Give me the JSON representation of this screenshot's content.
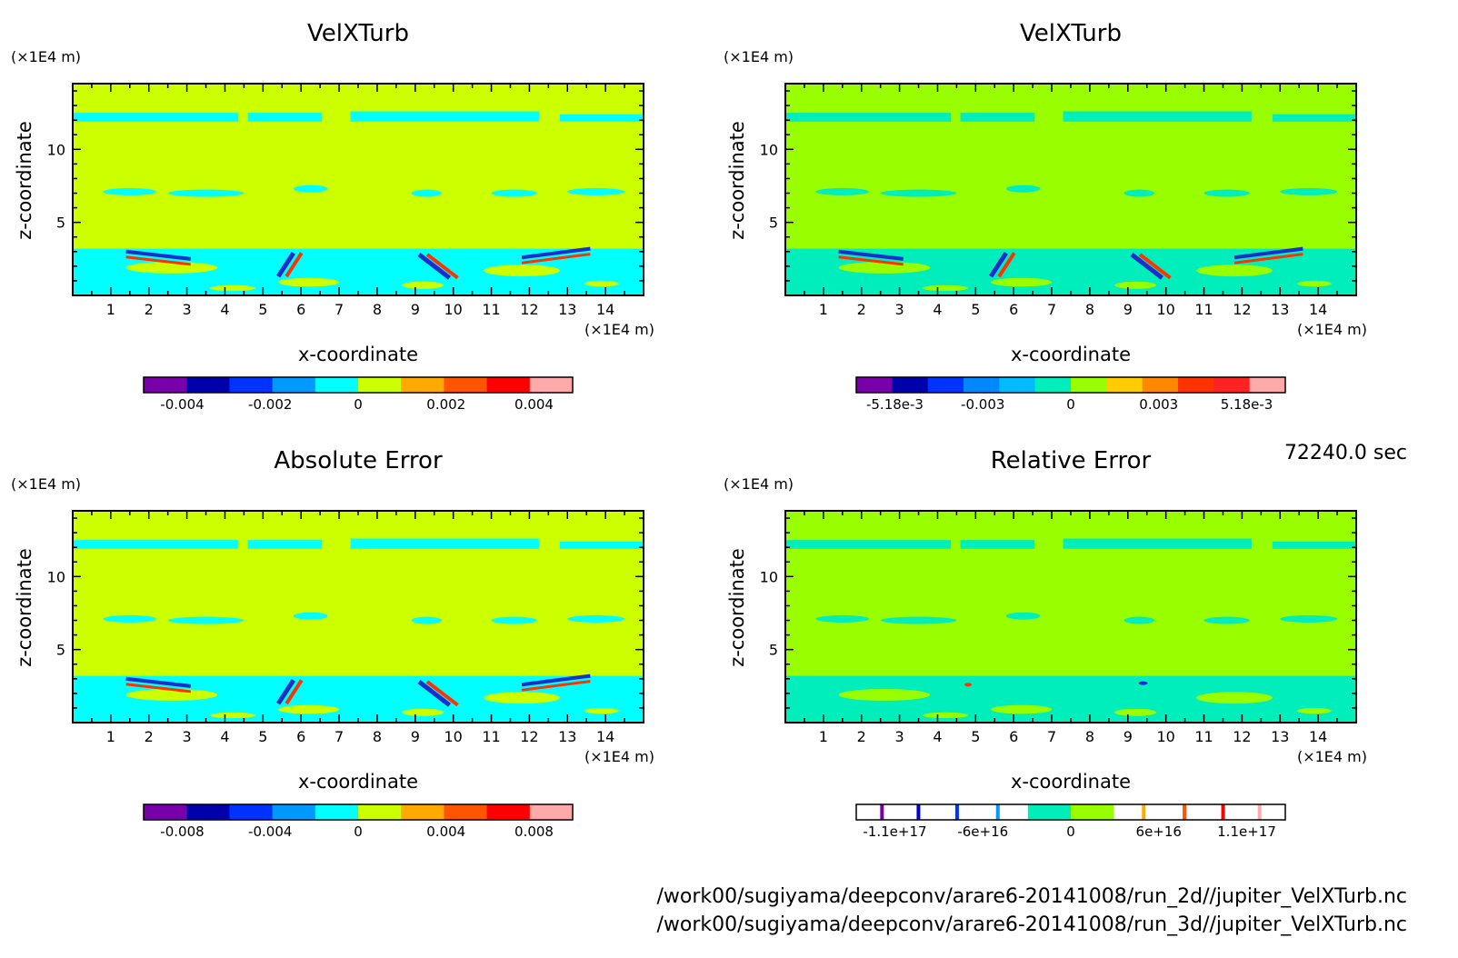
{
  "header": {
    "time_label": "72240.0 sec"
  },
  "footer": {
    "file1": "/work00/sugiyama/deepconv/arare6-20141008/run_2d//jupiter_VelXTurb.nc",
    "file2": "/work00/sugiyama/deepconv/arare6-20141008/run_3d//jupiter_VelXTurb.nc"
  },
  "colors": {
    "background_2d": "#ccff00",
    "background_3d": "#99ff00",
    "anomaly": "#00ffff",
    "anomaly_3d": "#00eebb",
    "strong_negative": "#1a2ecc",
    "strong_positive": "#ff3300"
  },
  "chart_data": [
    {
      "type": "heatmap",
      "title": "VelXTurb",
      "xlabel": "x-coordinate",
      "ylabel": "z-coordinate",
      "x_unit": "(×1E4 m)",
      "y_unit": "(×1E4 m)",
      "xlim": [
        0,
        15
      ],
      "ylim": [
        0,
        14.5
      ],
      "x_ticks": [
        "1",
        "2",
        "3",
        "4",
        "5",
        "6",
        "7",
        "8",
        "9",
        "10",
        "11",
        "12",
        "13",
        "14"
      ],
      "y_ticks": [
        "5",
        "10"
      ],
      "colorbar": {
        "colors": [
          "#7700aa",
          "#0000aa",
          "#0033ff",
          "#0099ff",
          "#00ffff",
          "#ccff00",
          "#ffaa00",
          "#ff5500",
          "#ff0000",
          "#ffaaaa"
        ],
        "labels": [
          "-0.004",
          "-0.002",
          "0",
          "0.002",
          "0.004"
        ]
      },
      "background": "#ccff00",
      "anomaly": "#00ffff"
    },
    {
      "type": "heatmap",
      "title": "VelXTurb",
      "xlabel": "x-coordinate",
      "ylabel": "z-coordinate",
      "x_unit": "(×1E4 m)",
      "y_unit": "(×1E4 m)",
      "xlim": [
        0,
        15
      ],
      "ylim": [
        0,
        14.5
      ],
      "x_ticks": [
        "1",
        "2",
        "3",
        "4",
        "5",
        "6",
        "7",
        "8",
        "9",
        "10",
        "11",
        "12",
        "13",
        "14"
      ],
      "y_ticks": [
        "5",
        "10"
      ],
      "colorbar": {
        "colors": [
          "#7700aa",
          "#0000aa",
          "#0033ff",
          "#0088ff",
          "#00bbff",
          "#00eebb",
          "#99ff00",
          "#ffcc00",
          "#ff8800",
          "#ff3300",
          "#ff2222",
          "#ffaaaa"
        ],
        "labels": [
          "-5.18e-3",
          "-0.003",
          "0",
          "0.003",
          "5.18e-3"
        ]
      },
      "background": "#99ff00",
      "anomaly": "#00eebb"
    },
    {
      "type": "heatmap",
      "title": "Absolute Error",
      "xlabel": "x-coordinate",
      "ylabel": "z-coordinate",
      "x_unit": "(×1E4 m)",
      "y_unit": "(×1E4 m)",
      "xlim": [
        0,
        15
      ],
      "ylim": [
        0,
        14.5
      ],
      "x_ticks": [
        "1",
        "2",
        "3",
        "4",
        "5",
        "6",
        "7",
        "8",
        "9",
        "10",
        "11",
        "12",
        "13",
        "14"
      ],
      "y_ticks": [
        "5",
        "10"
      ],
      "colorbar": {
        "colors": [
          "#7700aa",
          "#0000aa",
          "#0033ff",
          "#0099ff",
          "#00ffff",
          "#ccff00",
          "#ffaa00",
          "#ff5500",
          "#ff0000",
          "#ffaaaa"
        ],
        "labels": [
          "-0.008",
          "-0.004",
          "0",
          "0.004",
          "0.008"
        ]
      },
      "background": "#ccff00",
      "anomaly": "#00ffff"
    },
    {
      "type": "heatmap",
      "title": "Relative Error",
      "xlabel": "x-coordinate",
      "ylabel": "z-coordinate",
      "x_unit": "(×1E4 m)",
      "y_unit": "(×1E4 m)",
      "xlim": [
        0,
        15
      ],
      "ylim": [
        0,
        14.5
      ],
      "x_ticks": [
        "1",
        "2",
        "3",
        "4",
        "5",
        "6",
        "7",
        "8",
        "9",
        "10",
        "11",
        "12",
        "13",
        "14"
      ],
      "y_ticks": [
        "5",
        "10"
      ],
      "colorbar": {
        "colors": [
          "#ffffff",
          "#ffffff",
          "#ffffff",
          "#ffffff",
          "#00eebb",
          "#99ff00",
          "#ffffff",
          "#ffffff",
          "#ffffff",
          "#ffffff"
        ],
        "lines": [
          "#7700aa",
          "#0000cc",
          "#0033ff",
          "#0099ff",
          "#ffaa00",
          "#ff5500",
          "#ff0000",
          "#ffaaaa"
        ],
        "labels": [
          "-1.1e+17",
          "-6e+16",
          "0",
          "6e+16",
          "1.1e+17"
        ]
      },
      "background": "#99ff00",
      "anomaly": "#00eebb"
    }
  ]
}
